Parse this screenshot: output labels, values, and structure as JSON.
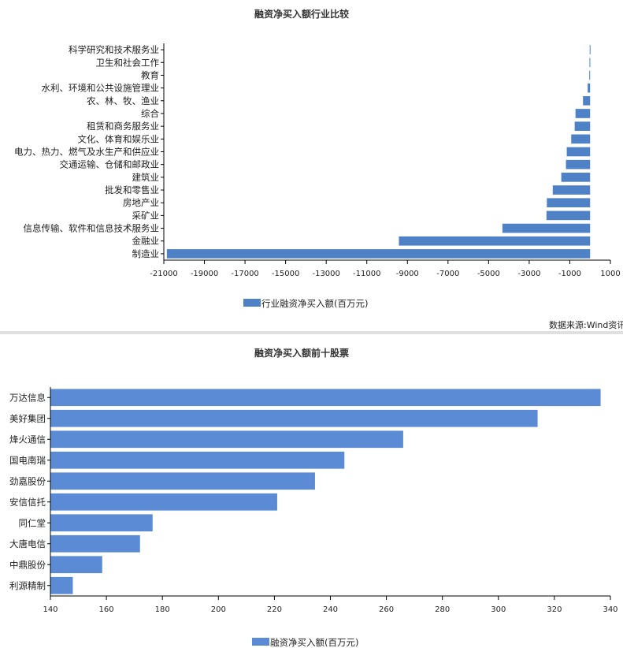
{
  "source_text": "数据来源:Wind资讯",
  "colors": {
    "bar1": "#4f81c7",
    "bar2": "#5b8bd5",
    "axis": "#000000",
    "divider": "#d8d8d8"
  },
  "chart_data": [
    {
      "type": "bar",
      "orientation": "horizontal",
      "title": "融资净买入额行业比较",
      "categories": [
        "科学研究和技术服务业",
        "卫生和社会工作",
        "教育",
        "水利、环境和公共设施管理业",
        "农、林、牧、渔业",
        "综合",
        "租赁和商务服务业",
        "文化、体育和娱乐业",
        "电力、热力、燃气及水生产和供应业",
        "交通运输、仓储和邮政业",
        "建筑业",
        "批发和零售业",
        "房地产业",
        "采矿业",
        "信息传输、软件和信息技术服务业",
        "金融业",
        "制造业"
      ],
      "series": [
        {
          "name": "行业融资净买入额(百万元)",
          "values": [
            -20,
            -30,
            -40,
            -120,
            -350,
            -720,
            -760,
            -930,
            -1150,
            -1190,
            -1420,
            -1840,
            -2130,
            -2150,
            -4320,
            -9420,
            -20850
          ]
        }
      ],
      "xlim": [
        -21000,
        1000
      ],
      "xticks": [
        -21000,
        -19000,
        -17000,
        -15000,
        -13000,
        -11000,
        -9000,
        -7000,
        -5000,
        -3000,
        -1000,
        1000
      ],
      "legend_position": "bottom"
    },
    {
      "type": "bar",
      "orientation": "horizontal",
      "title": "融资净买入额前十股票",
      "categories": [
        "万达信息",
        "美好集团",
        "烽火通信",
        "国电南瑞",
        "劲嘉股份",
        "安信信托",
        "同仁堂",
        "大唐电信",
        "中鼎股份",
        "利源精制"
      ],
      "series": [
        {
          "name": "融资净买入额(百万元)",
          "values": [
            336.5,
            314,
            266,
            245,
            234.5,
            221,
            176.5,
            172,
            158.5,
            148
          ]
        }
      ],
      "xlim": [
        140,
        340
      ],
      "xticks": [
        140,
        160,
        180,
        200,
        220,
        240,
        260,
        280,
        300,
        320,
        340
      ],
      "legend_position": "bottom"
    }
  ]
}
